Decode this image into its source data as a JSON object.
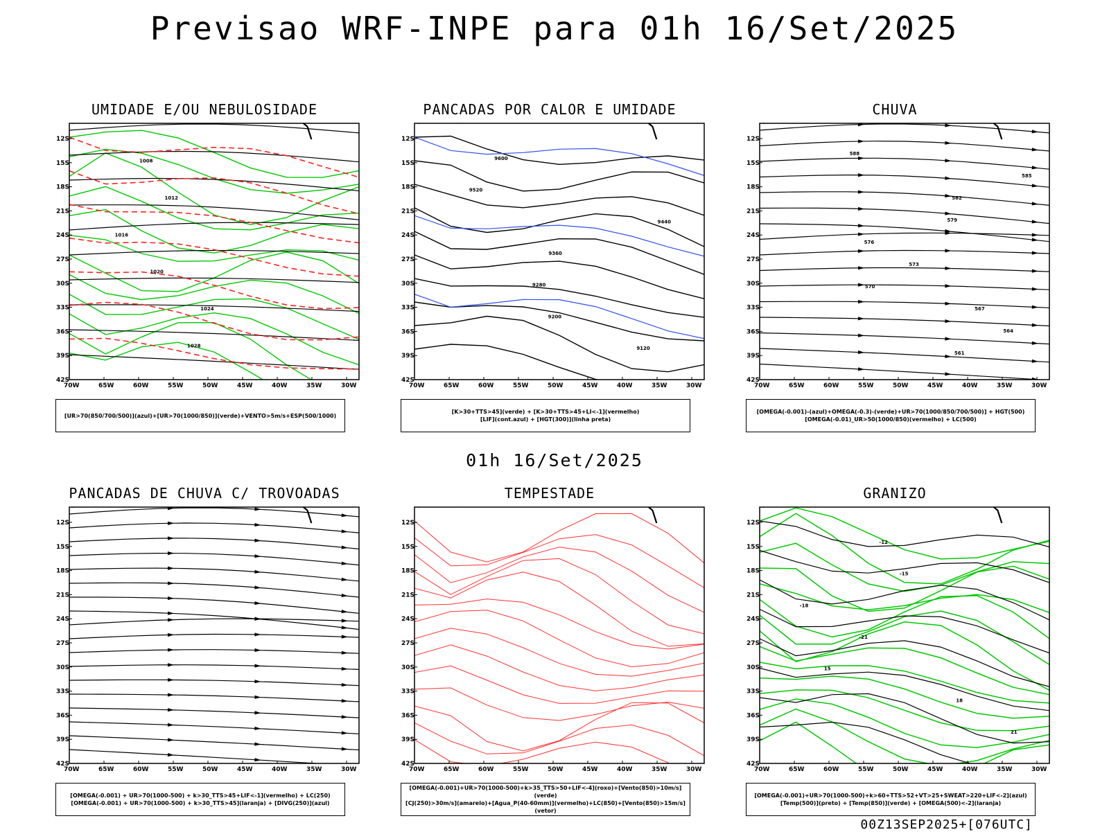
{
  "title": "Previsao WRF-INPE  para 01h 16/Set/2025",
  "subtitle": "01h 16/Set/2025",
  "footer": "00Z13SEP2025+[076UTC]",
  "lat_labels": [
    "12S",
    "15S",
    "18S",
    "21S",
    "24S",
    "27S",
    "30S",
    "33S",
    "36S",
    "39S",
    "42S"
  ],
  "lon_labels": [
    "70W",
    "65W",
    "60W",
    "55W",
    "50W",
    "45W",
    "40W",
    "35W",
    "30W"
  ],
  "panels": [
    {
      "title": "UMIDADE E/OU NEBULOSIDADE",
      "legend": [
        "[UR>70(850/700/500)](azul)+[UR>70(1000/850)](verde)+VENTO>5m/s+ESP(500/1000)"
      ],
      "contour_labels": [
        "1008",
        "1012",
        "1016",
        "1020",
        "1024",
        "1028"
      ],
      "colors": {
        "blue": "#9a9ef5",
        "green": "#00c800",
        "red": "#ff2020"
      }
    },
    {
      "title": "PANCADAS POR CALOR E UMIDADE",
      "legend": [
        "[K>30+TTS>45](verde) + [K>30+TTS>45+LI<-1](vermelho)",
        "[LIF](cont.azul) + [HGT(300)](linha preta)"
      ],
      "contour_labels": [
        "9600",
        "9520",
        "9440",
        "9360",
        "9280",
        "9200",
        "9120"
      ],
      "colors": {
        "red": "#f03838",
        "dark": "#1e4a40",
        "blue": "#3050f0"
      }
    },
    {
      "title": "CHUVA",
      "legend": [
        "[OMEGA(-0.001)-(azul)+OMEGA(-0.3)-(verde)+UR>70(1000/850/700/500)] + HGT(500)",
        "[OMEGA(-0.01)_UR>50(1000/850)(vermelho) + LC(500)"
      ],
      "contour_labels": [
        "588",
        "585",
        "582",
        "579",
        "576",
        "573",
        "570",
        "567",
        "564",
        "561"
      ],
      "colors": {
        "red": "#ff3030",
        "green": "#00c000",
        "blue": "#2040ff"
      }
    },
    {
      "title": "PANCADAS DE CHUVA C/ TROVOADAS",
      "legend": [
        "[OMEGA(-0.001) + UR>70(1000-500) + k>30_TTS>45+LIF<-1](vermelho) + LC(250)",
        "[OMEGA(-0.001) + UR>70(1000-500) + k>30_TTS>45](laranja) + [DIVG(250)](azul)"
      ],
      "contour_labels": [],
      "colors": {
        "orange": "#f07a20",
        "blue": "#2040ff",
        "red": "#ff2020"
      }
    },
    {
      "title": "TEMPESTADE",
      "legend": [
        "[OMEGA(-0.001)+UR>70(1000-500)+k>35_TTS>50+LIF<-4](roxo)+[Vento(850)>10m/s](verde)",
        "[CJ(250)>30m/s](amarelo)+[Agua_P(40-60mm)](vermelho)+LC(850)+[Vento(850)>15m/s](vetor)"
      ],
      "contour_labels": [],
      "colors": {
        "yellow": "#e4dc3c",
        "red": "#ff3030",
        "green": "#00b000"
      }
    },
    {
      "title": "GRANIZO",
      "legend": [
        "[OMEGA(-0.001)+UR>70(1000-500)+k>60+TTS>52+VT>25+SWEAT>220+LIF<-2](azul)",
        "[Temp(500)](preto) + [Temp(850)](verde) + [OMEGA(500)<-2](laranja)"
      ],
      "contour_labels": [
        "-12",
        "-15",
        "-18",
        "-21",
        "15",
        "18",
        "21"
      ],
      "colors": {
        "green": "#00c800",
        "orange": "#f07a20",
        "blue": "#2040ff"
      }
    }
  ]
}
